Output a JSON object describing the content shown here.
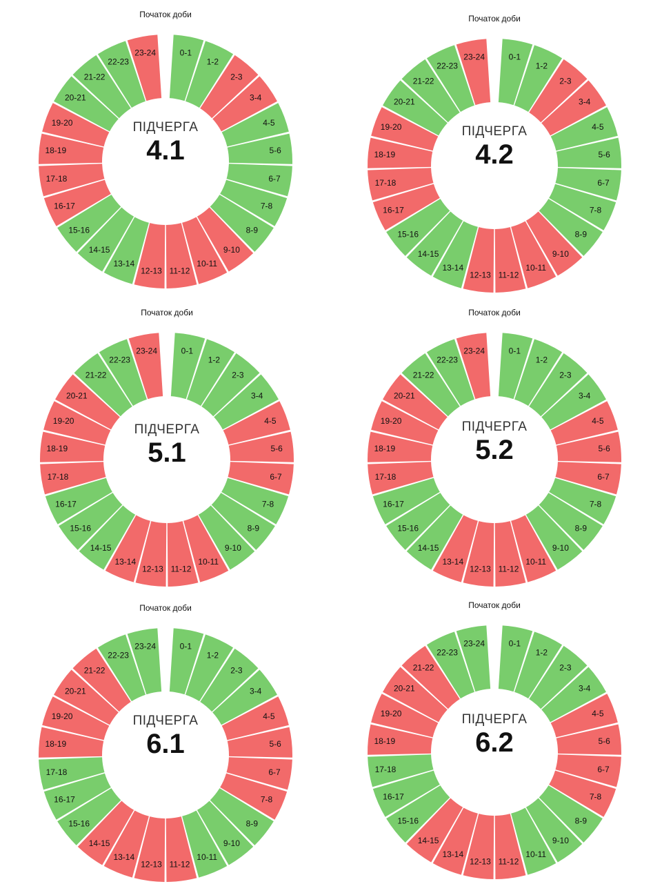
{
  "day_start_label": "Початок доби",
  "group_label": "ПІДЧЕРГА",
  "colors": {
    "on": "#79cd6c",
    "off": "#f26a6a"
  },
  "hours": [
    "0-1",
    "1-2",
    "2-3",
    "3-4",
    "4-5",
    "5-6",
    "6-7",
    "7-8",
    "8-9",
    "9-10",
    "10-11",
    "11-12",
    "12-13",
    "13-14",
    "14-15",
    "15-16",
    "16-17",
    "17-18",
    "18-19",
    "19-20",
    "20-21",
    "21-22",
    "22-23",
    "23-24"
  ],
  "wheels": [
    {
      "number": "4.1",
      "states": [
        "on",
        "on",
        "off",
        "off",
        "on",
        "on",
        "on",
        "on",
        "on",
        "off",
        "off",
        "off",
        "off",
        "on",
        "on",
        "on",
        "off",
        "off",
        "off",
        "off",
        "on",
        "on",
        "on",
        "off"
      ]
    },
    {
      "number": "4.2",
      "states": [
        "on",
        "on",
        "off",
        "off",
        "on",
        "on",
        "on",
        "on",
        "on",
        "off",
        "off",
        "off",
        "off",
        "on",
        "on",
        "on",
        "off",
        "off",
        "off",
        "off",
        "on",
        "on",
        "on",
        "off"
      ]
    },
    {
      "number": "5.1",
      "states": [
        "on",
        "on",
        "on",
        "on",
        "off",
        "off",
        "off",
        "on",
        "on",
        "on",
        "off",
        "off",
        "off",
        "off",
        "on",
        "on",
        "on",
        "off",
        "off",
        "off",
        "off",
        "on",
        "on",
        "off"
      ]
    },
    {
      "number": "5.2",
      "states": [
        "on",
        "on",
        "on",
        "on",
        "off",
        "off",
        "off",
        "on",
        "on",
        "on",
        "off",
        "off",
        "off",
        "off",
        "on",
        "on",
        "on",
        "off",
        "off",
        "off",
        "off",
        "on",
        "on",
        "off"
      ]
    },
    {
      "number": "6.1",
      "states": [
        "on",
        "on",
        "on",
        "on",
        "off",
        "off",
        "off",
        "off",
        "on",
        "on",
        "on",
        "off",
        "off",
        "off",
        "off",
        "on",
        "on",
        "on",
        "off",
        "off",
        "off",
        "off",
        "on",
        "on"
      ]
    },
    {
      "number": "6.2",
      "states": [
        "on",
        "on",
        "on",
        "on",
        "off",
        "off",
        "off",
        "off",
        "on",
        "on",
        "on",
        "off",
        "off",
        "off",
        "off",
        "on",
        "on",
        "on",
        "off",
        "off",
        "off",
        "off",
        "on",
        "on"
      ]
    }
  ]
}
